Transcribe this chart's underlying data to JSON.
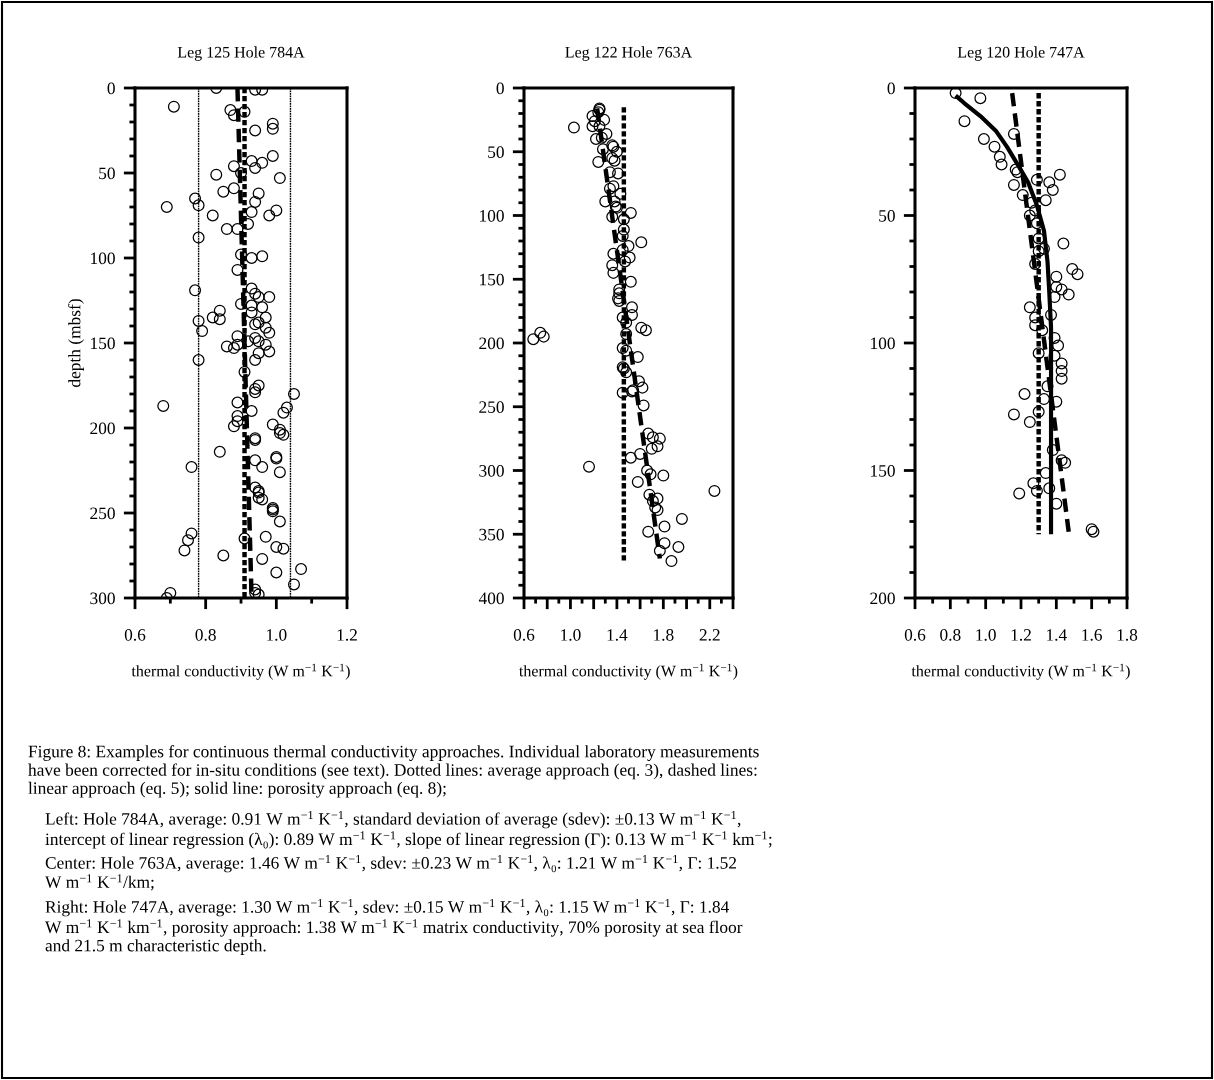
{
  "chart_data": [
    {
      "type": "scatter",
      "title": "Leg 125 Hole 784A",
      "xlabel": "thermal conductivity (W m$^{−1}$ K$^{−1}$)",
      "ylabel": "depth (mbsf)",
      "xlim": [
        0.6,
        1.2
      ],
      "xticks": [
        {
          "value": 0.6,
          "label": "0.6"
        },
        {
          "value": 0.8,
          "label": "0.8"
        },
        {
          "value": 1.0,
          "label": "1.0"
        },
        {
          "value": 1.2,
          "label": "1.2"
        }
      ],
      "ylim": [
        300,
        0
      ],
      "yticks": [
        0,
        50,
        100,
        150,
        200,
        250,
        300
      ],
      "series": [
        {
          "type": "scatter",
          "marker": "circle",
          "color": "#000000",
          "x": [
            0.83,
            0.94,
            0.96,
            0.71,
            0.87,
            0.88,
            0.91,
            0.99,
            0.99,
            0.94,
            0.99,
            0.88,
            0.93,
            0.96,
            0.94,
            0.9,
            1.01,
            0.83,
            0.85,
            0.88,
            0.95,
            0.77,
            0.78,
            0.94,
            0.69,
            1.0,
            0.93,
            0.98,
            0.82,
            0.86,
            0.89,
            0.92,
            0.78,
            0.9,
            0.93,
            0.96,
            0.89,
            0.77,
            0.93,
            0.94,
            0.9,
            0.95,
            0.98,
            0.93,
            0.96,
            0.93,
            0.97,
            0.84,
            0.82,
            0.84,
            0.78,
            0.94,
            0.95,
            0.97,
            0.79,
            0.98,
            0.89,
            0.94,
            0.95,
            0.92,
            0.89,
            0.86,
            0.97,
            0.88,
            0.95,
            0.98,
            0.78,
            0.94,
            0.91,
            0.95,
            0.94,
            0.94,
            1.05,
            0.68,
            0.89,
            1.03,
            1.02,
            0.93,
            0.89,
            0.89,
            0.88,
            0.99,
            1.01,
            1.01,
            1.02,
            0.94,
            0.94,
            0.84,
            1.0,
            1.0,
            0.94,
            0.76,
            0.96,
            1.01,
            0.94,
            0.95,
            0.95,
            0.95,
            0.96,
            0.99,
            0.99,
            0.99,
            1.01,
            0.91,
            0.97,
            0.76,
            0.75,
            0.74,
            1.0,
            1.02,
            0.85,
            0.96,
            1.07,
            1.0,
            1.05,
            0.94,
            0.94,
            0.95,
            0.7,
            0.69
          ],
          "values": [
            0,
            1,
            1,
            11,
            13,
            16,
            14,
            21,
            24,
            25,
            40,
            46,
            43,
            44,
            47,
            50,
            53,
            51,
            61,
            59,
            62,
            65,
            69,
            67,
            70,
            72,
            73,
            75,
            75,
            83,
            83,
            80,
            88,
            98,
            100,
            99,
            107,
            119,
            118,
            121,
            127,
            123,
            123,
            128,
            129,
            132,
            135,
            131,
            135,
            136,
            137,
            139,
            138,
            141,
            143,
            144,
            146,
            147,
            149,
            149,
            151,
            152,
            151,
            153,
            156,
            155,
            160,
            160,
            167,
            175,
            177,
            179,
            180,
            187,
            185,
            188,
            191,
            190,
            193,
            196,
            199,
            198,
            201,
            203,
            204,
            206,
            207,
            214,
            217,
            218,
            219,
            223,
            223,
            226,
            235,
            237,
            238,
            241,
            242,
            247,
            248,
            249,
            255,
            265,
            264,
            262,
            266,
            272,
            270,
            271,
            275,
            277,
            283,
            285,
            292,
            295,
            297,
            298,
            297,
            300
          ]
        },
        {
          "type": "line",
          "line_style": "dotted",
          "color": "#000000",
          "x": [
            0.91,
            0.91
          ],
          "values": [
            0,
            300
          ]
        },
        {
          "type": "line",
          "line_style": "dashed",
          "color": "#000000",
          "x": [
            0.89,
            0.93
          ],
          "values": [
            0,
            300
          ]
        },
        {
          "type": "line",
          "line_style": "dotted",
          "color": "#000000",
          "x": [
            0.78,
            0.78
          ],
          "values": [
            0,
            300
          ]
        },
        {
          "type": "line",
          "line_style": "dotted",
          "color": "#000000",
          "x": [
            1.04,
            1.04
          ],
          "values": [
            0,
            300
          ]
        }
      ],
      "annotations": [
        "Figure 8: Examples for continuous thermal conductivity approaches. Individual laboratory measurements\nhave been corrected for in-situ conditions (see text). Dotted lines: average approach (eq. 3), dashed lines:\nlinear approach (eq. 5); solid line: porosity approach (eq. 8);",
        "Left: Hole 784A, average: 0.91 W m$^{−1}$ K$^{−1}$, standard deviation of average (sdev): ±0.13 W m$^{−1}$ K$^{−1}$,\nintercept of linear regression (λ₀): 0.89 W m$^{−1}$ K$^{−1}$, slope of linear regression (Γ): 0.13 W m$^{−1}$ K$^{−1}$ km$^{−1}$;",
        "Center: Hole 763A, average: 1.46 W m$^{−1}$ K$^{−1}$, sdev: ±0.23 W m$^{−1}$ K$^{−1}$, λ₀: 1.21 W m$^{−1}$ K$^{−1}$, Γ: 1.52\nW m$^{−1}$ K$^{−1}$/km;",
        "Right: Hole 747A, average: 1.30 W m$^{−1}$ K$^{−1}$, sdev: ±0.15 W m$^{−1}$ K$^{−1}$, λ₀: 1.15 W m$^{−1}$ K$^{−1}$, Γ: 1.84\nW m$^{−1}$ K$^{−1}$ km$^{−1}$, porosity approach: 1.38 W m$^{−1}$ K$^{−1}$ matrix conductivity, 70% porosity at sea floor\nand 21.5 m characteristic depth."
      ]
    },
    {
      "type": "scatter",
      "title": "Leg 122 Hole 763A",
      "xlabel": "thermal conductivity (W m$^{−1}$ K$^{−1}$)",
      "xlim": [
        0.6,
        2.4
      ],
      "xticks": [
        {
          "value": 0.6,
          "label": "0.6"
        },
        {
          "value": 0.8,
          "label": null
        },
        {
          "value": 1.0,
          "label": "1.0"
        },
        {
          "value": 1.2,
          "label": null
        },
        {
          "value": 1.4,
          "label": "1.4"
        },
        {
          "value": 1.6,
          "label": null
        },
        {
          "value": 1.8,
          "label": "1.8"
        },
        {
          "value": 2.0,
          "label": null
        },
        {
          "value": 2.2,
          "label": "2.2"
        },
        {
          "value": 2.4,
          "label": null
        }
      ],
      "ylim": [
        400,
        0
      ],
      "yticks": [
        0,
        50,
        100,
        150,
        200,
        250,
        300,
        350,
        400
      ],
      "series": [
        {
          "type": "scatter",
          "marker": "circle",
          "color": "#000000",
          "x": [
            1.25,
            1.25,
            1.24,
            1.19,
            1.29,
            1.21,
            1.19,
            1.03,
            1.25,
            1.31,
            1.22,
            1.27,
            1.28,
            1.36,
            1.37,
            1.4,
            1.24,
            1.36,
            1.38,
            1.34,
            1.41,
            1.34,
            1.37,
            1.43,
            1.3,
            1.38,
            1.39,
            1.4,
            1.36,
            1.52,
            1.46,
            1.46,
            1.45,
            1.5,
            1.61,
            1.45,
            1.37,
            1.47,
            1.51,
            1.36,
            1.37,
            1.52,
            1.42,
            1.42,
            1.41,
            1.42,
            1.53,
            1.53,
            1.45,
            1.48,
            1.61,
            1.65,
            1.48,
            0.74,
            0.77,
            0.68,
            1.45,
            1.58,
            1.48,
            1.45,
            1.46,
            1.48,
            1.59,
            1.62,
            1.54,
            1.45,
            1.53,
            1.63,
            1.67,
            1.71,
            1.77,
            1.7,
            1.75,
            1.6,
            1.52,
            1.16,
            1.66,
            1.69,
            1.8,
            1.58,
            2.24,
            1.68,
            1.71,
            1.75,
            1.73,
            1.75,
            1.96,
            1.67,
            1.81,
            1.81,
            1.93,
            1.77,
            1.87
          ],
          "values": [
            16,
            17,
            19,
            22,
            25,
            26,
            30,
            31,
            30,
            36,
            40,
            39,
            48,
            45,
            46,
            50,
            58,
            55,
            57,
            66,
            67,
            79,
            77,
            83,
            89,
            89,
            93,
            94,
            101,
            98,
            103,
            111,
            116,
            124,
            121,
            127,
            130,
            136,
            133,
            139,
            145,
            152,
            158,
            161,
            165,
            167,
            172,
            178,
            180,
            184,
            188,
            190,
            193,
            192,
            195,
            197,
            204,
            211,
            206,
            219,
            220,
            223,
            230,
            235,
            237,
            239,
            238,
            249,
            271,
            274,
            275,
            283,
            281,
            287,
            290,
            297,
            300,
            303,
            304,
            309,
            316,
            319,
            324,
            322,
            329,
            331,
            338,
            348,
            344,
            357,
            360,
            363,
            371
          ]
        },
        {
          "type": "line",
          "line_style": "dotted",
          "color": "#000000",
          "x": [
            1.46,
            1.46
          ],
          "values": [
            15,
            372
          ]
        },
        {
          "type": "line",
          "line_style": "dashed",
          "color": "#000000",
          "x": [
            1.23,
            1.77
          ],
          "values": [
            16,
            369
          ]
        }
      ]
    },
    {
      "type": "scatter",
      "title": "Leg 120 Hole 747A",
      "xlabel": "thermal conductivity (W m$^{−1}$ K$^{−1}$)",
      "xlim": [
        0.6,
        1.8
      ],
      "xticks": [
        {
          "value": 0.6,
          "label": "0.6"
        },
        {
          "value": 0.8,
          "label": "0.8"
        },
        {
          "value": 1.0,
          "label": "1.0"
        },
        {
          "value": 1.2,
          "label": "1.2"
        },
        {
          "value": 1.4,
          "label": "1.4"
        },
        {
          "value": 1.6,
          "label": "1.6"
        },
        {
          "value": 1.8,
          "label": "1.8"
        }
      ],
      "ylim": [
        200,
        0
      ],
      "yticks": [
        0,
        50,
        100,
        150,
        200
      ],
      "series": [
        {
          "type": "scatter",
          "marker": "circle",
          "color": "#000000",
          "x": [
            0.83,
            0.97,
            0.88,
            0.99,
            1.05,
            1.08,
            1.09,
            1.16,
            1.17,
            1.18,
            1.16,
            1.21,
            1.29,
            1.36,
            1.42,
            1.38,
            1.34,
            1.26,
            1.28,
            1.25,
            1.29,
            1.44,
            1.3,
            1.33,
            1.3,
            1.28,
            1.49,
            1.52,
            1.4,
            1.4,
            1.43,
            1.47,
            1.39,
            1.25,
            1.28,
            1.37,
            1.28,
            1.32,
            1.39,
            1.41,
            1.3,
            1.39,
            1.43,
            1.43,
            1.43,
            1.35,
            1.33,
            1.4,
            1.22,
            1.16,
            1.3,
            1.25,
            1.38,
            1.43,
            1.45,
            1.34,
            1.27,
            1.36,
            1.29,
            1.19,
            1.4,
            1.6,
            1.61
          ],
          "values": [
            2,
            4,
            13,
            20,
            23,
            27,
            30,
            18,
            32,
            33,
            38,
            42,
            36,
            37,
            34,
            40,
            44,
            45,
            48,
            50,
            53,
            61,
            59,
            63,
            64,
            69,
            71,
            73,
            74,
            78,
            79,
            81,
            82,
            86,
            90,
            89,
            93,
            95,
            98,
            101,
            104,
            105,
            108,
            111,
            114,
            117,
            122,
            123,
            120,
            128,
            127,
            131,
            142,
            146,
            147,
            151,
            155,
            157,
            158,
            159,
            163,
            173,
            174
          ]
        },
        {
          "type": "line",
          "line_style": "dotted",
          "color": "#000000",
          "x": [
            1.3,
            1.3
          ],
          "values": [
            2,
            175
          ]
        },
        {
          "type": "line",
          "line_style": "dashed",
          "color": "#000000",
          "x": [
            1.15,
            1.47
          ],
          "values": [
            2,
            174
          ]
        },
        {
          "type": "line",
          "line_style": "solid",
          "color": "#000000",
          "x": [
            0.83,
            0.88,
            0.97,
            1.06,
            1.12,
            1.19,
            1.24,
            1.29,
            1.33,
            1.35,
            1.36,
            1.37,
            1.37
          ],
          "values": [
            3,
            6,
            11,
            17,
            23,
            31,
            37,
            46,
            56,
            68,
            80,
            94,
            175
          ]
        }
      ]
    }
  ]
}
